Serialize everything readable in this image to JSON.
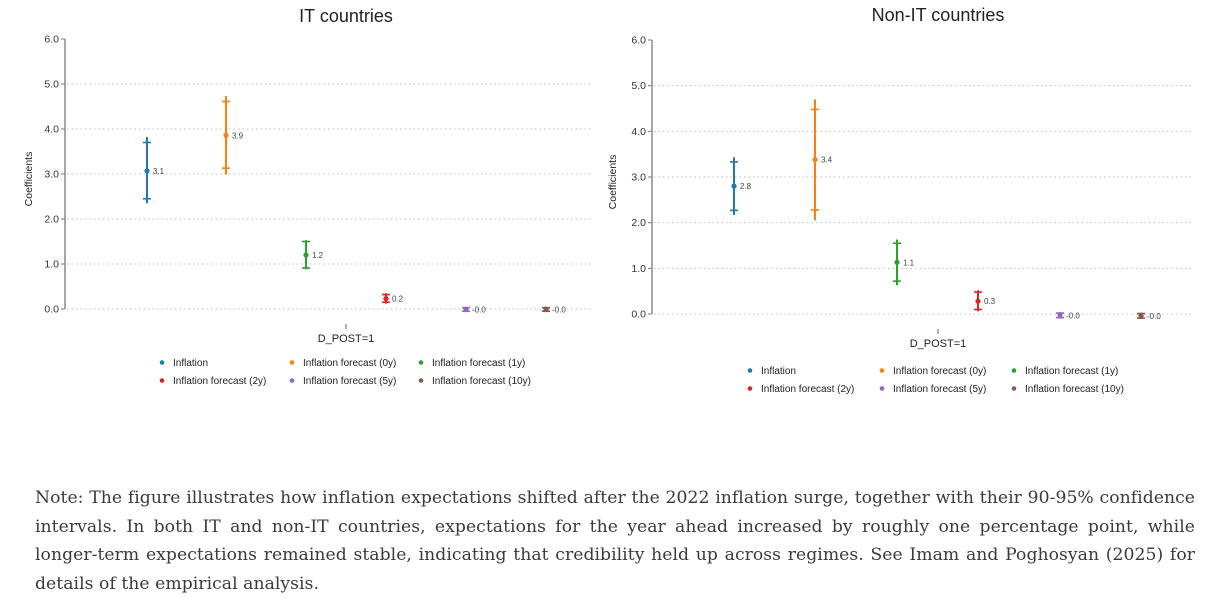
{
  "chart_data": [
    {
      "type": "scatter",
      "subtype": "coefficient plot with confidence intervals",
      "title": "IT countries",
      "xlabel": "",
      "ylabel": "Coefficients",
      "xtick_label": "D_POST=1",
      "ylim": [
        0,
        6
      ],
      "yticks": [
        "0.0",
        "1.0",
        "2.0",
        "3.0",
        "4.0",
        "5.0",
        "6.0"
      ],
      "grid": true,
      "legend_position": "bottom",
      "series": [
        {
          "name": "Inflation",
          "color": "#1f77b4",
          "value": 3.07,
          "label": "3.1",
          "ci90": [
            2.45,
            3.7
          ],
          "ci95": [
            2.35,
            3.82
          ]
        },
        {
          "name": "Inflation forecast (0y)",
          "color": "#ff7f0e",
          "value": 3.86,
          "label": "3.9",
          "ci90": [
            3.13,
            4.61
          ],
          "ci95": [
            2.99,
            4.73
          ]
        },
        {
          "name": "Inflation forecast (1y)",
          "color": "#2ca02c",
          "value": 1.2,
          "label": "1.2",
          "ci90": [
            0.91,
            1.5
          ],
          "ci95": [
            0.88,
            1.53
          ]
        },
        {
          "name": "Inflation forecast (2y)",
          "color": "#d62728",
          "value": 0.23,
          "label": "0.2",
          "ci90": [
            0.15,
            0.32
          ],
          "ci95": [
            0.12,
            0.35
          ]
        },
        {
          "name": "Inflation forecast (5y)",
          "color": "#9467bd",
          "value": -0.01,
          "label": "-0.0",
          "ci90": [
            -0.05,
            0.03
          ],
          "ci95": [
            -0.07,
            0.05
          ]
        },
        {
          "name": "Inflation forecast (10y)",
          "color": "#8c564b",
          "value": -0.01,
          "label": "-0.0",
          "ci90": [
            -0.05,
            0.03
          ],
          "ci95": [
            -0.07,
            0.05
          ]
        }
      ]
    },
    {
      "type": "scatter",
      "subtype": "coefficient plot with confidence intervals",
      "title": "Non-IT countries",
      "xlabel": "",
      "ylabel": "Coefficients",
      "xtick_label": "D_POST=1",
      "ylim": [
        0,
        6
      ],
      "yticks": [
        "0.0",
        "1.0",
        "2.0",
        "3.0",
        "4.0",
        "5.0",
        "6.0"
      ],
      "grid": true,
      "legend_position": "bottom",
      "series": [
        {
          "name": "Inflation",
          "color": "#1f77b4",
          "value": 2.8,
          "label": "2.8",
          "ci90": [
            2.27,
            3.33
          ],
          "ci95": [
            2.17,
            3.43
          ]
        },
        {
          "name": "Inflation forecast (0y)",
          "color": "#ff7f0e",
          "value": 3.38,
          "label": "3.4",
          "ci90": [
            2.28,
            4.48
          ],
          "ci95": [
            2.05,
            4.7
          ]
        },
        {
          "name": "Inflation forecast (1y)",
          "color": "#2ca02c",
          "value": 1.13,
          "label": "1.1",
          "ci90": [
            0.72,
            1.55
          ],
          "ci95": [
            0.63,
            1.63
          ]
        },
        {
          "name": "Inflation forecast (2y)",
          "color": "#d62728",
          "value": 0.28,
          "label": "0.3",
          "ci90": [
            0.1,
            0.48
          ],
          "ci95": [
            0.06,
            0.52
          ]
        },
        {
          "name": "Inflation forecast (5y)",
          "color": "#9467bd",
          "value": -0.03,
          "label": "-0.0",
          "ci90": [
            -0.08,
            0.02
          ],
          "ci95": [
            -0.1,
            0.04
          ]
        },
        {
          "name": "Inflation forecast (10y)",
          "color": "#8c564b",
          "value": -0.04,
          "label": "-0.0",
          "ci90": [
            -0.09,
            0.01
          ],
          "ci95": [
            -0.11,
            0.03
          ]
        }
      ]
    }
  ],
  "note": "Note: The figure illustrates how inflation expectations shifted after the 2022 inflation surge, together with their 90-95% confidence intervals. In both IT and non-IT countries, expectations for the year ahead increased by roughly one percentage point, while longer-term expectations remained stable, indicating that credibility held up across regimes. See Imam and Poghosyan (2025) for details of the empirical analysis."
}
